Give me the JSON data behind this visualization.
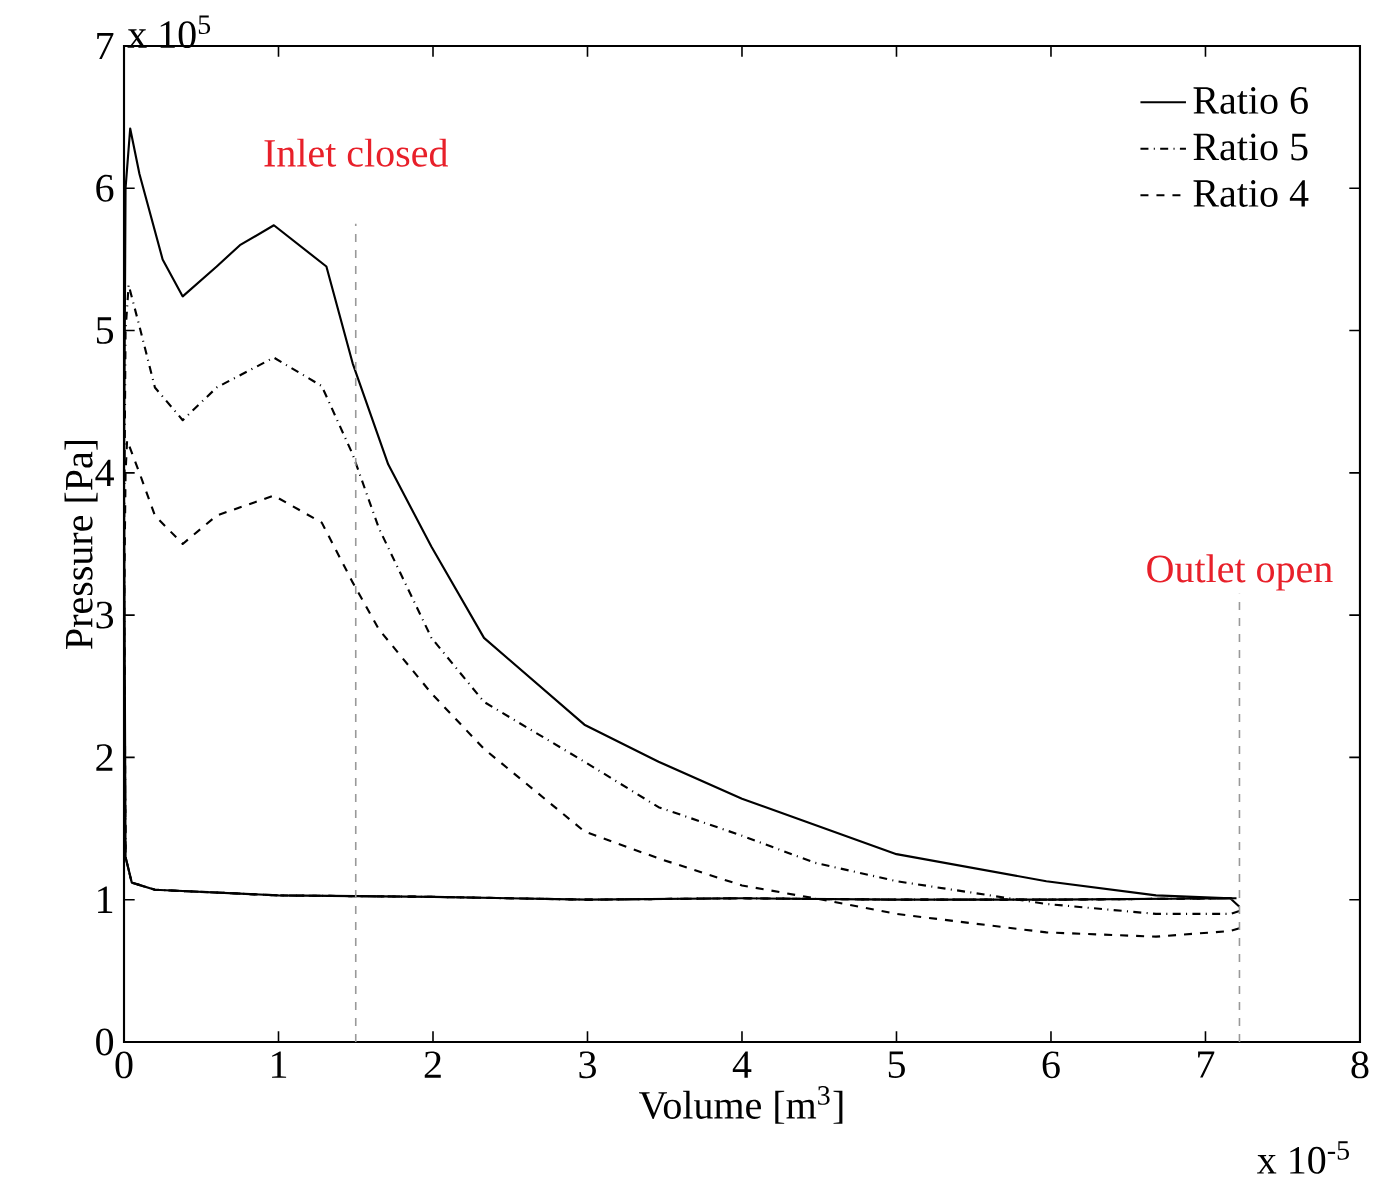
{
  "chart_data": {
    "type": "line",
    "xlabel": "Volume [m$^{3}$]",
    "ylabel": "Pressure [Pa]",
    "xlim": [
      0,
      8
    ],
    "ylim": [
      0,
      7
    ],
    "xticks": [
      0,
      1,
      2,
      3,
      4,
      5,
      6,
      7,
      8
    ],
    "yticks": [
      0,
      1,
      2,
      3,
      4,
      5,
      6,
      7
    ],
    "grid": false,
    "legend": "top right",
    "marker": "none",
    "annotations": [
      "x 10$^{5}$",
      "x 10$^{-5}$"
    ],
    "ref_lines": [
      {
        "axis": "x",
        "value": 1.5,
        "label": "Inlet closed",
        "color": "#999999",
        "line_style": "dashed"
      },
      {
        "axis": "x",
        "value": 7.22,
        "label": "Outlet open",
        "color": "#999999",
        "line_style": "dashed"
      }
    ],
    "series": [
      {
        "name": "Ratio 6",
        "color": "#000000",
        "line_style": "solid",
        "x": [
          7.22,
          7.16,
          6.68,
          5.97,
          5.0,
          4.0,
          3.46,
          2.98,
          2.33,
          1.99,
          1.71,
          1.48,
          1.31,
          0.97,
          0.75,
          0.6,
          0.38,
          0.25,
          0.1,
          0.04,
          0.01,
          0.0,
          0.01,
          0.05,
          0.2,
          1.0,
          2.0,
          3.0,
          4.0,
          5.0,
          6.0,
          7.2
        ],
        "values": [
          0.95,
          1.01,
          1.03,
          1.13,
          1.32,
          1.71,
          1.97,
          2.23,
          2.84,
          3.48,
          4.06,
          4.77,
          5.45,
          5.74,
          5.6,
          5.45,
          5.24,
          5.5,
          6.1,
          6.42,
          6.0,
          4.0,
          1.3,
          1.12,
          1.07,
          1.03,
          1.02,
          1.0,
          1.01,
          1.0,
          1.0,
          1.01
        ]
      },
      {
        "name": "Ratio 5",
        "color": "#000000",
        "line_style": "dashdot",
        "x": [
          7.22,
          7.16,
          6.68,
          5.97,
          5.0,
          4.47,
          4.0,
          3.46,
          2.98,
          2.33,
          1.99,
          1.65,
          1.48,
          1.28,
          0.97,
          0.6,
          0.38,
          0.2,
          0.1,
          0.03,
          0.01,
          0.0,
          0.01,
          0.05,
          0.2,
          1.0,
          2.0,
          3.0,
          4.0,
          5.0,
          6.0,
          7.2
        ],
        "values": [
          0.92,
          0.9,
          0.9,
          0.97,
          1.13,
          1.26,
          1.45,
          1.65,
          1.97,
          2.39,
          2.84,
          3.61,
          4.13,
          4.61,
          4.81,
          4.6,
          4.37,
          4.6,
          5.03,
          5.32,
          5.0,
          3.5,
          1.3,
          1.12,
          1.07,
          1.03,
          1.02,
          1.0,
          1.01,
          1.0,
          1.0,
          1.01
        ]
      },
      {
        "name": "Ratio 4",
        "color": "#000000",
        "line_style": "dashed",
        "x": [
          7.22,
          7.16,
          6.68,
          5.97,
          5.0,
          4.47,
          4.0,
          3.46,
          2.98,
          2.33,
          1.99,
          1.65,
          1.48,
          1.28,
          0.97,
          0.6,
          0.38,
          0.2,
          0.1,
          0.02,
          0.01,
          0.0,
          0.01,
          0.05,
          0.2,
          1.0,
          2.0,
          3.0,
          4.0,
          5.0,
          6.0,
          7.2
        ],
        "values": [
          0.8,
          0.78,
          0.74,
          0.77,
          0.9,
          1.01,
          1.1,
          1.29,
          1.48,
          2.06,
          2.45,
          2.9,
          3.23,
          3.65,
          3.84,
          3.7,
          3.5,
          3.7,
          4.0,
          4.23,
          4.0,
          3.0,
          1.3,
          1.12,
          1.07,
          1.03,
          1.02,
          1.0,
          1.01,
          1.0,
          1.0,
          1.01
        ]
      }
    ]
  }
}
